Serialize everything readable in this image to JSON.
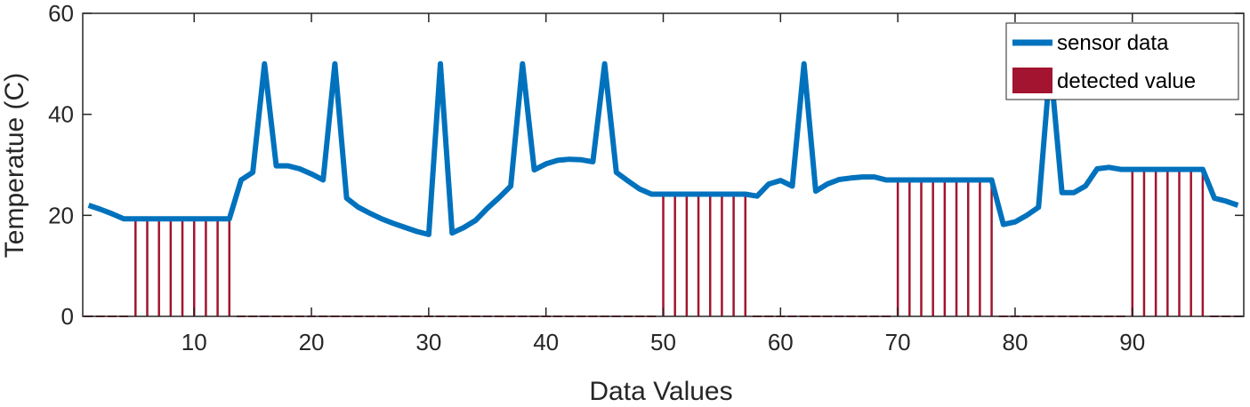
{
  "chart_data": {
    "type": "line",
    "title": "",
    "xlabel": "Data Values",
    "ylabel": "Temperatue (C)",
    "xlim": [
      0.5,
      99.5
    ],
    "ylim": [
      0,
      60
    ],
    "xticks": [
      10,
      20,
      30,
      40,
      50,
      60,
      70,
      80,
      90
    ],
    "yticks": [
      0,
      20,
      40,
      60
    ],
    "grid": false,
    "legend_position": "top-right",
    "series": [
      {
        "name": "sensor data",
        "type": "line",
        "color": "#0072BD",
        "x": [
          1,
          2,
          3,
          4,
          5,
          6,
          7,
          8,
          9,
          10,
          11,
          12,
          13,
          14,
          15,
          16,
          17,
          18,
          19,
          20,
          21,
          22,
          23,
          24,
          25,
          26,
          27,
          28,
          29,
          30,
          31,
          32,
          33,
          34,
          35,
          36,
          37,
          38,
          39,
          40,
          41,
          42,
          43,
          44,
          45,
          46,
          47,
          48,
          49,
          50,
          51,
          52,
          53,
          54,
          55,
          56,
          57,
          58,
          59,
          60,
          61,
          62,
          63,
          64,
          65,
          66,
          67,
          68,
          69,
          70,
          71,
          72,
          73,
          74,
          75,
          76,
          77,
          78,
          79,
          80,
          81,
          82,
          83,
          84,
          85,
          86,
          87,
          88,
          89,
          90,
          91,
          92,
          93,
          94,
          95,
          96,
          97,
          98,
          99
        ],
        "y": [
          22,
          21.2,
          20.3,
          19.3,
          19.3,
          19.3,
          19.3,
          19.3,
          19.3,
          19.3,
          19.3,
          19.3,
          19.3,
          27,
          28.5,
          50,
          29.8,
          29.8,
          29.2,
          28.2,
          27,
          50,
          23.4,
          21.6,
          20.4,
          19.3,
          18.4,
          17.6,
          16.8,
          16.2,
          50,
          16.5,
          17.6,
          19,
          21.4,
          23.5,
          25.8,
          50,
          29,
          30.2,
          30.9,
          31.1,
          31,
          30.6,
          50,
          28.5,
          26.8,
          25.2,
          24.2,
          24.2,
          24.2,
          24.2,
          24.2,
          24.2,
          24.2,
          24.2,
          24.2,
          23.8,
          26.2,
          26.9,
          25.8,
          50,
          24.8,
          26.2,
          27.1,
          27.4,
          27.6,
          27.6,
          27,
          27,
          27,
          27,
          27,
          27,
          27,
          27,
          27,
          27,
          18.2,
          18.7,
          20,
          21.6,
          50,
          24.5,
          24.5,
          25.8,
          29.2,
          29.5,
          29.1,
          29.1,
          29.1,
          29.1,
          29.1,
          29.1,
          29.1,
          29.1,
          23.4,
          22.8,
          22
        ]
      },
      {
        "name": "detected value",
        "type": "stem",
        "color": "#A2142F",
        "x": [
          5,
          6,
          7,
          8,
          9,
          10,
          11,
          12,
          13,
          50,
          51,
          52,
          53,
          54,
          55,
          56,
          57,
          70,
          71,
          72,
          73,
          74,
          75,
          76,
          77,
          78,
          90,
          91,
          92,
          93,
          94,
          95,
          96
        ],
        "y": [
          19.3,
          19.3,
          19.3,
          19.3,
          19.3,
          19.3,
          19.3,
          19.3,
          19.3,
          24.2,
          24.2,
          24.2,
          24.2,
          24.2,
          24.2,
          24.2,
          24.2,
          27,
          27,
          27,
          27,
          27,
          27,
          27,
          27,
          27,
          29.1,
          29.1,
          29.1,
          29.1,
          29.1,
          29.1,
          29.1
        ]
      }
    ]
  }
}
